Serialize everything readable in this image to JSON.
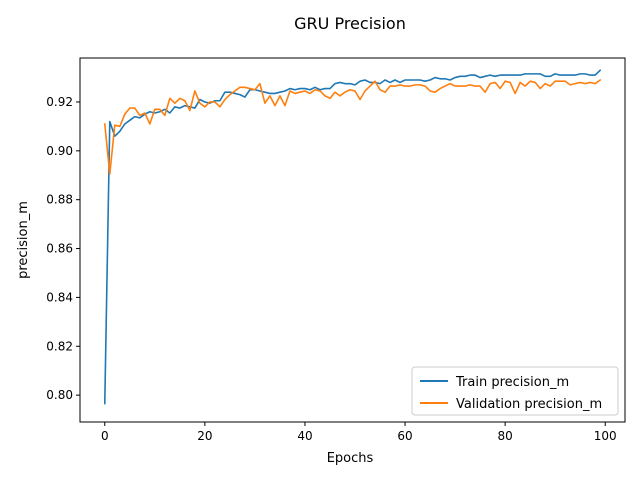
{
  "chart_data": {
    "type": "line",
    "title": "GRU Precision",
    "xlabel": "Epochs",
    "ylabel": "precision_m",
    "xlim": [
      -4.95,
      103.95
    ],
    "ylim": [
      0.789,
      0.938
    ],
    "xticks": [
      0,
      20,
      40,
      60,
      80,
      100
    ],
    "yticks": [
      0.8,
      0.82,
      0.84,
      0.86,
      0.88,
      0.9,
      0.92
    ],
    "ytick_labels": [
      "0.80",
      "0.82",
      "0.84",
      "0.86",
      "0.88",
      "0.90",
      "0.92"
    ],
    "grid": false,
    "legend_position": "lower-right",
    "series": [
      {
        "name": "Train precision_m",
        "color": "#1f77b4",
        "values": [
          0.7965,
          0.912,
          0.906,
          0.908,
          0.911,
          0.9125,
          0.914,
          0.9135,
          0.915,
          0.916,
          0.9155,
          0.916,
          0.917,
          0.9155,
          0.918,
          0.9175,
          0.9185,
          0.918,
          0.9175,
          0.921,
          0.92,
          0.9195,
          0.9205,
          0.9205,
          0.924,
          0.924,
          0.9235,
          0.923,
          0.922,
          0.925,
          0.925,
          0.9245,
          0.924,
          0.9235,
          0.9235,
          0.924,
          0.9245,
          0.9255,
          0.925,
          0.9255,
          0.9255,
          0.925,
          0.926,
          0.925,
          0.9255,
          0.9255,
          0.9275,
          0.928,
          0.9275,
          0.9275,
          0.927,
          0.9285,
          0.929,
          0.928,
          0.928,
          0.9275,
          0.929,
          0.928,
          0.929,
          0.928,
          0.929,
          0.929,
          0.929,
          0.929,
          0.9285,
          0.929,
          0.93,
          0.9295,
          0.9295,
          0.929,
          0.93,
          0.9305,
          0.9305,
          0.931,
          0.931,
          0.93,
          0.9305,
          0.931,
          0.9305,
          0.931,
          0.931,
          0.931,
          0.931,
          0.931,
          0.9315,
          0.9315,
          0.9315,
          0.9315,
          0.9305,
          0.9305,
          0.9315,
          0.931,
          0.931,
          0.931,
          0.931,
          0.9315,
          0.9315,
          0.931,
          0.931,
          0.933
        ]
      },
      {
        "name": "Validation precision_m",
        "color": "#ff7f0e",
        "values": [
          0.911,
          0.8905,
          0.9105,
          0.91,
          0.915,
          0.9175,
          0.9175,
          0.9145,
          0.9155,
          0.911,
          0.917,
          0.917,
          0.9145,
          0.9215,
          0.9195,
          0.9215,
          0.9205,
          0.9165,
          0.9245,
          0.9195,
          0.918,
          0.92,
          0.92,
          0.918,
          0.921,
          0.923,
          0.9245,
          0.926,
          0.926,
          0.9255,
          0.925,
          0.9275,
          0.9195,
          0.9225,
          0.9185,
          0.9225,
          0.9185,
          0.9245,
          0.9235,
          0.924,
          0.9245,
          0.9235,
          0.925,
          0.9245,
          0.9225,
          0.9215,
          0.924,
          0.9225,
          0.924,
          0.925,
          0.9245,
          0.921,
          0.9245,
          0.9265,
          0.9285,
          0.925,
          0.924,
          0.9265,
          0.9265,
          0.927,
          0.9265,
          0.9265,
          0.927,
          0.927,
          0.9265,
          0.9245,
          0.924,
          0.9255,
          0.9265,
          0.9275,
          0.9265,
          0.9265,
          0.9265,
          0.927,
          0.9265,
          0.9265,
          0.924,
          0.9275,
          0.928,
          0.9255,
          0.9285,
          0.928,
          0.9235,
          0.928,
          0.9265,
          0.9285,
          0.928,
          0.9255,
          0.9275,
          0.9265,
          0.9285,
          0.9285,
          0.9285,
          0.927,
          0.9275,
          0.928,
          0.9275,
          0.928,
          0.9275,
          0.929
        ]
      }
    ]
  }
}
